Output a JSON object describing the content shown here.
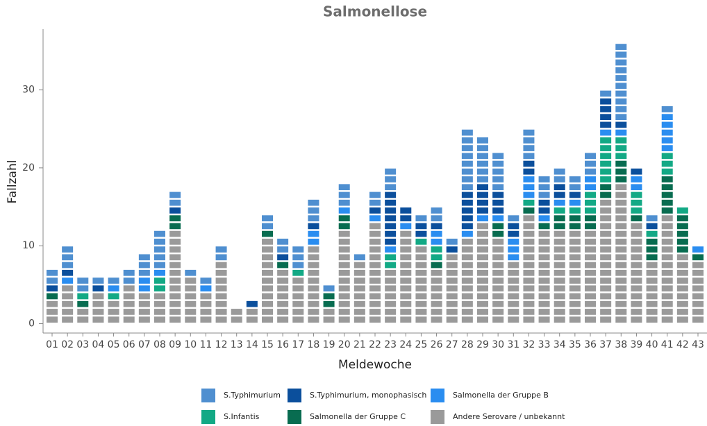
{
  "chart_data": {
    "type": "unit_stacked_bar",
    "title": "Salmonellose",
    "x_label": "Meldewoche",
    "y_label": "Fallzahl",
    "categories": [
      "01",
      "02",
      "03",
      "04",
      "05",
      "06",
      "07",
      "08",
      "09",
      "10",
      "11",
      "12",
      "13",
      "14",
      "15",
      "16",
      "17",
      "18",
      "19",
      "20",
      "21",
      "22",
      "23",
      "24",
      "25",
      "26",
      "27",
      "28",
      "29",
      "30",
      "31",
      "32",
      "33",
      "34",
      "35",
      "36",
      "37",
      "38",
      "39",
      "40",
      "41",
      "42",
      "43"
    ],
    "ylim": [
      -1.2,
      37.8
    ],
    "yticks": [
      0,
      10,
      20,
      30
    ],
    "grid": false,
    "series": [
      {
        "name": "S.Typhimurium",
        "color": "#4f8fd0",
        "values": [
          2,
          3,
          2,
          1,
          1,
          2,
          3,
          5,
          2,
          1,
          1,
          2,
          0,
          0,
          2,
          2,
          3,
          3,
          1,
          3,
          1,
          2,
          3,
          0,
          1,
          2,
          1,
          8,
          6,
          5,
          1,
          4,
          3,
          2,
          2,
          3,
          1,
          10,
          0,
          1,
          1,
          0,
          0
        ]
      },
      {
        "name": "S.Typhimurium, monophasisch",
        "color": "#0b4f9c",
        "values": [
          1,
          1,
          0,
          1,
          0,
          0,
          0,
          0,
          1,
          0,
          0,
          0,
          0,
          1,
          0,
          1,
          0,
          1,
          0,
          0,
          0,
          1,
          7,
          2,
          2,
          1,
          1,
          5,
          4,
          3,
          2,
          2,
          2,
          2,
          1,
          0,
          4,
          1,
          1,
          1,
          0,
          0,
          0
        ]
      },
      {
        "name": "Salmonella der Gruppe B",
        "color": "#2a8df0",
        "values": [
          0,
          1,
          0,
          0,
          1,
          0,
          2,
          1,
          0,
          0,
          1,
          0,
          0,
          0,
          0,
          0,
          0,
          2,
          0,
          1,
          0,
          1,
          1,
          1,
          0,
          2,
          0,
          1,
          1,
          1,
          3,
          3,
          1,
          1,
          1,
          2,
          1,
          1,
          2,
          0,
          5,
          0,
          1
        ]
      },
      {
        "name": "S.Infantis",
        "color": "#13a985",
        "values": [
          0,
          0,
          1,
          0,
          1,
          0,
          0,
          2,
          0,
          0,
          0,
          0,
          0,
          0,
          0,
          0,
          1,
          0,
          0,
          0,
          0,
          0,
          2,
          0,
          1,
          2,
          0,
          0,
          0,
          0,
          0,
          1,
          0,
          1,
          1,
          3,
          6,
          3,
          3,
          1,
          3,
          1,
          0
        ]
      },
      {
        "name": "Salmonella der Gruppe C",
        "color": "#086c50",
        "values": [
          1,
          0,
          1,
          0,
          0,
          0,
          0,
          0,
          2,
          0,
          0,
          0,
          0,
          0,
          1,
          1,
          0,
          0,
          2,
          2,
          0,
          0,
          0,
          0,
          0,
          1,
          0,
          0,
          0,
          2,
          0,
          1,
          1,
          2,
          2,
          2,
          2,
          3,
          1,
          3,
          5,
          5,
          1
        ]
      },
      {
        "name": "Andere Serovare / unbekannt",
        "color": "#9a9a9a",
        "values": [
          3,
          5,
          2,
          4,
          3,
          5,
          4,
          4,
          12,
          6,
          4,
          8,
          2,
          2,
          11,
          7,
          6,
          10,
          2,
          12,
          8,
          13,
          7,
          12,
          10,
          7,
          9,
          11,
          13,
          11,
          8,
          14,
          12,
          12,
          12,
          12,
          16,
          18,
          13,
          8,
          14,
          9,
          8
        ]
      }
    ]
  }
}
